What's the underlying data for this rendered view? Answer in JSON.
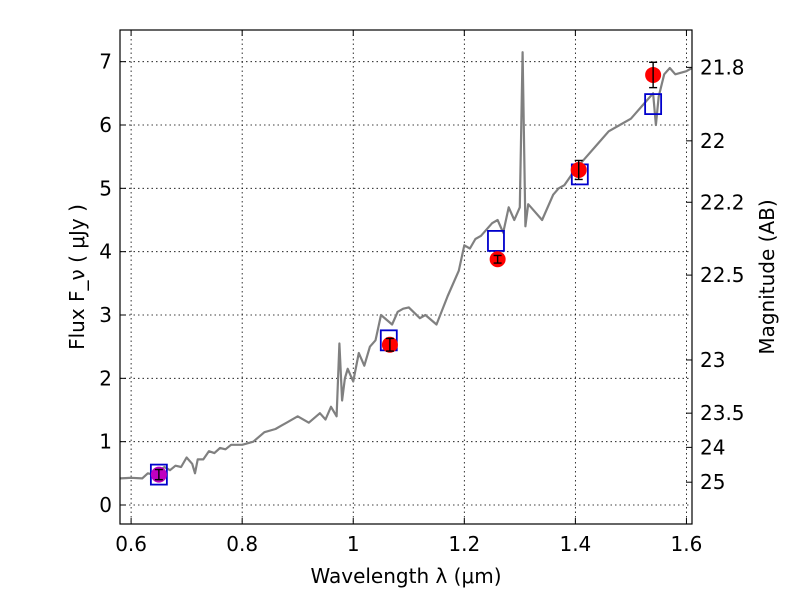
{
  "chart_data": {
    "type": "line",
    "xlabel": "Wavelength  λ (μm)",
    "ylabel_left": "Flux  F_ν  ( μJy )",
    "ylabel_right": "Magnitude (AB)",
    "xlim": [
      0.58,
      1.61
    ],
    "ylim": [
      -0.3,
      7.5
    ],
    "grid": true,
    "x_ticks": [
      0.6,
      0.8,
      1.0,
      1.2,
      1.4,
      1.6
    ],
    "x_tick_labels": [
      "0.6",
      "0.8",
      "1",
      "1.2",
      "1.4",
      "1.6"
    ],
    "y_ticks": [
      0,
      1,
      2,
      3,
      4,
      5,
      6,
      7
    ],
    "y_tick_labels": [
      "0",
      "1",
      "2",
      "3",
      "4",
      "5",
      "6",
      "7"
    ],
    "right_ticks": [
      {
        "label": "21.8",
        "flux": 6.91
      },
      {
        "label": "22",
        "flux": 5.75
      },
      {
        "label": "22.2",
        "flux": 4.78
      },
      {
        "label": "22.5",
        "flux": 3.63
      },
      {
        "label": "23",
        "flux": 2.29
      },
      {
        "label": "23.5",
        "flux": 1.45
      },
      {
        "label": "24",
        "flux": 0.91
      },
      {
        "label": "25",
        "flux": 0.36
      }
    ],
    "series": [
      {
        "kind": "line",
        "color": "#808080",
        "x": [
          0.58,
          0.6,
          0.62,
          0.63,
          0.64,
          0.66,
          0.67,
          0.68,
          0.69,
          0.7,
          0.71,
          0.715,
          0.72,
          0.73,
          0.74,
          0.75,
          0.76,
          0.77,
          0.78,
          0.8,
          0.82,
          0.84,
          0.86,
          0.87,
          0.88,
          0.9,
          0.92,
          0.94,
          0.95,
          0.96,
          0.97,
          0.975,
          0.98,
          0.985,
          0.99,
          1.0,
          1.01,
          1.02,
          1.03,
          1.04,
          1.05,
          1.07,
          1.08,
          1.09,
          1.1,
          1.12,
          1.13,
          1.15,
          1.17,
          1.19,
          1.2,
          1.21,
          1.22,
          1.23,
          1.25,
          1.26,
          1.27,
          1.28,
          1.29,
          1.3,
          1.305,
          1.31,
          1.315,
          1.32,
          1.34,
          1.36,
          1.37,
          1.38,
          1.4,
          1.42,
          1.44,
          1.46,
          1.48,
          1.5,
          1.52,
          1.54,
          1.545,
          1.55,
          1.56,
          1.57,
          1.58,
          1.6,
          1.61
        ],
        "y": [
          0.42,
          0.43,
          0.42,
          0.5,
          0.48,
          0.6,
          0.55,
          0.62,
          0.6,
          0.75,
          0.65,
          0.5,
          0.72,
          0.72,
          0.85,
          0.82,
          0.9,
          0.88,
          0.95,
          0.95,
          1.0,
          1.15,
          1.2,
          1.25,
          1.3,
          1.4,
          1.3,
          1.45,
          1.35,
          1.55,
          1.4,
          2.55,
          1.65,
          2.0,
          2.15,
          1.95,
          2.4,
          2.2,
          2.5,
          2.6,
          3.0,
          2.85,
          3.05,
          3.1,
          3.12,
          2.95,
          3.0,
          2.85,
          3.3,
          3.7,
          4.1,
          4.05,
          4.2,
          4.25,
          4.45,
          4.5,
          4.3,
          4.7,
          4.5,
          4.7,
          7.15,
          4.4,
          4.75,
          4.7,
          4.5,
          4.9,
          5.0,
          5.05,
          5.3,
          5.5,
          5.7,
          5.9,
          6.0,
          6.1,
          6.3,
          6.5,
          6.0,
          6.45,
          6.8,
          6.9,
          6.8,
          6.85,
          6.9
        ]
      }
    ],
    "observed_points": [
      {
        "x": 1.066,
        "y": 2.53,
        "err": 0.1,
        "color": "#ff0000"
      },
      {
        "x": 1.26,
        "y": 3.88,
        "err": 0.06,
        "color": "#ff0000"
      },
      {
        "x": 1.406,
        "y": 5.29,
        "err": 0.15,
        "color": "#ff0000"
      },
      {
        "x": 1.54,
        "y": 6.79,
        "err": 0.2,
        "color": "#ff0000"
      },
      {
        "x": 0.65,
        "y": 0.48,
        "err": 0.08,
        "color": "#bf00bf"
      }
    ],
    "model_points": [
      {
        "x": 0.65,
        "y": 0.48,
        "color": "#0000cc"
      },
      {
        "x": 1.064,
        "y": 2.6,
        "color": "#0000cc"
      },
      {
        "x": 1.257,
        "y": 4.17,
        "color": "#0000cc"
      },
      {
        "x": 1.408,
        "y": 5.22,
        "color": "#0000cc"
      },
      {
        "x": 1.54,
        "y": 6.33,
        "color": "#0000cc"
      }
    ]
  }
}
